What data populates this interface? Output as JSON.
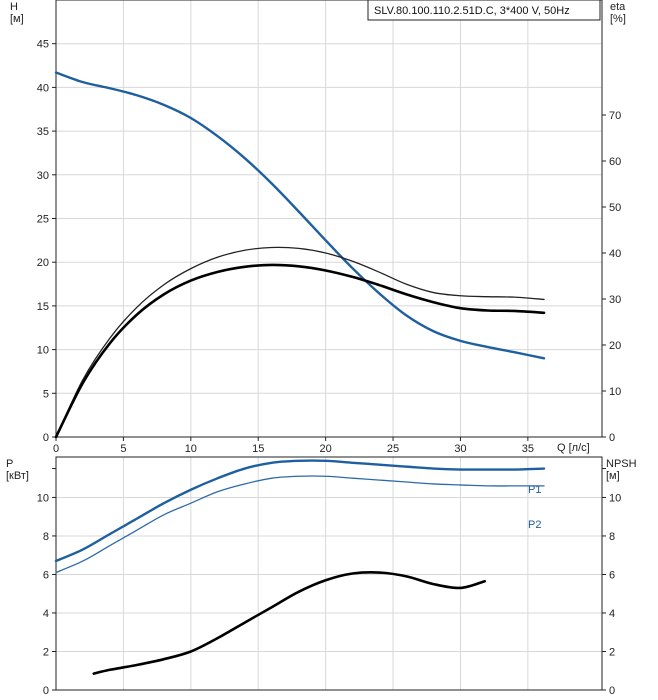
{
  "chart_data": [
    {
      "type": "line",
      "title": "SLV.80.100.110.2.51D.C, 3*400 V, 50Hz",
      "xlabel": "Q [л/с]",
      "ylabel": "H\n[м]",
      "ylabel_right": "eta\n[%]",
      "xlim": [
        0,
        40.5
      ],
      "ylim": [
        0,
        50
      ],
      "ylim_right": [
        0,
        95
      ],
      "x_ticks": [
        0,
        5,
        10,
        15,
        20,
        25,
        30,
        35
      ],
      "y_ticks": [
        0,
        5,
        10,
        15,
        20,
        25,
        30,
        35,
        40,
        45
      ],
      "y_ticks_right": [
        0,
        10,
        20,
        30,
        40,
        50,
        60,
        70
      ],
      "grid": true,
      "series": [
        {
          "color": "#1f5fa0",
          "axis": "left",
          "x": [
            0,
            2,
            4,
            6,
            8,
            10,
            12,
            14,
            16,
            18,
            20,
            22,
            24,
            26,
            28,
            30,
            32,
            34,
            36.2
          ],
          "y": [
            41.7,
            40.6,
            39.9,
            39.1,
            38.0,
            36.5,
            34.4,
            31.9,
            29.0,
            25.8,
            22.5,
            19.3,
            16.4,
            13.9,
            12.1,
            11.0,
            10.3,
            9.7,
            9.0
          ]
        },
        {
          "color": "#222222",
          "axis": "right",
          "x": [
            0,
            2,
            4,
            6,
            8,
            10,
            12,
            14,
            16,
            18,
            20,
            22,
            24,
            26,
            28,
            30,
            32,
            34,
            36.2
          ],
          "y": [
            0,
            12.5,
            21.5,
            28.2,
            33.1,
            36.6,
            39.1,
            40.6,
            41.2,
            41.0,
            40.0,
            38.2,
            35.8,
            33.2,
            31.4,
            30.7,
            30.5,
            30.4,
            29.9
          ]
        },
        {
          "color": "#000000",
          "axis": "right",
          "x": [
            0,
            2,
            4,
            6,
            8,
            10,
            12,
            14,
            16,
            18,
            20,
            22,
            24,
            26,
            28,
            30,
            32,
            34,
            36.2
          ],
          "y": [
            0,
            11.8,
            20.4,
            26.6,
            31.0,
            34.0,
            35.9,
            37.0,
            37.4,
            37.1,
            36.2,
            34.8,
            33.0,
            31.0,
            29.3,
            28.0,
            27.5,
            27.4,
            27.0
          ]
        }
      ]
    },
    {
      "type": "line",
      "ylabel": "P\n[кВт]",
      "ylabel_right": "NPSH\n[м]",
      "xlim": [
        0,
        40.5
      ],
      "ylim": [
        0,
        12.1
      ],
      "ylim_right": [
        0,
        12.1
      ],
      "y_ticks": [
        0,
        2,
        4,
        6,
        8,
        10
      ],
      "y_ticks_right": [
        0,
        2,
        4,
        6,
        8,
        10
      ],
      "grid": true,
      "series": [
        {
          "name": "P1",
          "color": "#1f5fa0",
          "axis": "left",
          "x": [
            0,
            2,
            4,
            6,
            8,
            10,
            12,
            14,
            16,
            18,
            20,
            22,
            24,
            26,
            28,
            30,
            32,
            34,
            36.2
          ],
          "y": [
            6.7,
            7.3,
            8.1,
            8.9,
            9.7,
            10.4,
            11.0,
            11.5,
            11.8,
            11.9,
            11.9,
            11.8,
            11.7,
            11.6,
            11.5,
            11.45,
            11.45,
            11.45,
            11.5
          ]
        },
        {
          "name": "P2",
          "color": "#2e6aa8",
          "axis": "left",
          "x": [
            0,
            2,
            4,
            6,
            8,
            10,
            12,
            14,
            16,
            18,
            20,
            22,
            24,
            26,
            28,
            30,
            32,
            34,
            36.2
          ],
          "y": [
            6.1,
            6.7,
            7.5,
            8.3,
            9.1,
            9.7,
            10.3,
            10.7,
            11.0,
            11.1,
            11.1,
            11.0,
            10.9,
            10.8,
            10.7,
            10.65,
            10.6,
            10.6,
            10.6
          ]
        },
        {
          "color": "#000000",
          "axis": "right",
          "x": [
            2.8,
            4,
            6,
            8,
            10,
            12,
            14,
            16,
            18,
            20,
            22,
            24,
            26,
            28,
            30,
            31.8
          ],
          "y": [
            0.85,
            1.05,
            1.3,
            1.6,
            2.0,
            2.7,
            3.5,
            4.3,
            5.1,
            5.7,
            6.05,
            6.1,
            5.9,
            5.5,
            5.3,
            5.65
          ]
        }
      ]
    }
  ]
}
